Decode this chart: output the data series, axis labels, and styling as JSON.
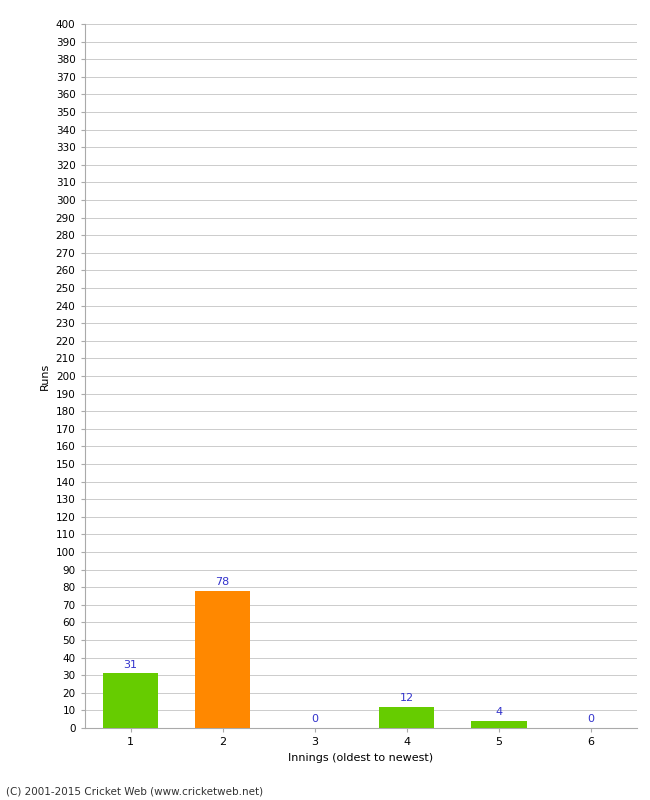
{
  "categories": [
    1,
    2,
    3,
    4,
    5,
    6
  ],
  "values": [
    31,
    78,
    0,
    12,
    4,
    0
  ],
  "bar_colors": [
    "#66cc00",
    "#ff8800",
    "#66cc00",
    "#66cc00",
    "#66cc00",
    "#66cc00"
  ],
  "ylabel": "Runs",
  "xlabel": "Innings (oldest to newest)",
  "ylim": [
    0,
    400
  ],
  "ytick_step": 10,
  "label_color": "#3333cc",
  "footer": "(C) 2001-2015 Cricket Web (www.cricketweb.net)",
  "background_color": "#ffffff",
  "grid_color": "#cccccc",
  "tick_color": "#888888",
  "spine_color": "#aaaaaa"
}
